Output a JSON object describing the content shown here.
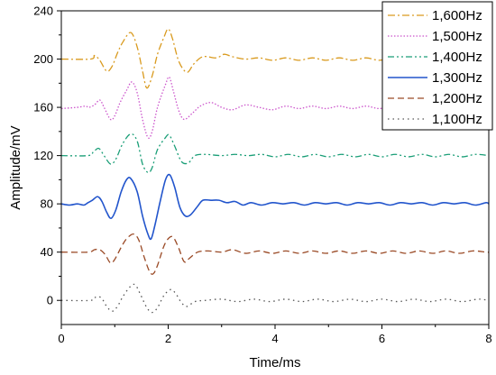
{
  "chart_data": {
    "type": "line",
    "title": "",
    "xlabel": "Time/ms",
    "ylabel": "Amplitude/mV",
    "xlim": [
      0,
      8
    ],
    "ylim": [
      -20,
      240
    ],
    "xticks": [
      0,
      2,
      4,
      6,
      8
    ],
    "xtick_labels": [
      "0",
      "2",
      "4",
      "6",
      "8"
    ],
    "yticks": [
      0,
      40,
      80,
      120,
      160,
      200,
      240
    ],
    "ytick_labels": [
      "0",
      "40",
      "80",
      "120",
      "160",
      "200",
      "240"
    ],
    "grid": false,
    "legend_position": "top-right",
    "series": [
      {
        "name": "1,600Hz",
        "color": "#d99a1e",
        "dash": "dashdot",
        "width": 1.3,
        "points": [
          [
            0,
            200
          ],
          [
            0.55,
            200
          ],
          [
            0.62,
            203
          ],
          [
            0.72,
            199
          ],
          [
            0.85,
            190
          ],
          [
            0.95,
            194
          ],
          [
            1.05,
            205
          ],
          [
            1.15,
            214
          ],
          [
            1.3,
            222
          ],
          [
            1.42,
            210
          ],
          [
            1.52,
            190
          ],
          [
            1.6,
            176
          ],
          [
            1.7,
            186
          ],
          [
            1.8,
            204
          ],
          [
            1.92,
            218
          ],
          [
            2.0,
            225
          ],
          [
            2.08,
            217
          ],
          [
            2.2,
            198
          ],
          [
            2.35,
            189
          ],
          [
            2.48,
            196
          ],
          [
            2.65,
            202
          ],
          [
            2.9,
            201
          ],
          [
            3.05,
            204
          ],
          [
            3.2,
            202
          ],
          [
            3.45,
            200
          ],
          [
            3.7,
            201
          ],
          [
            3.95,
            199
          ],
          [
            4.2,
            201
          ],
          [
            4.45,
            199
          ],
          [
            4.7,
            201
          ],
          [
            4.95,
            199
          ],
          [
            5.2,
            201
          ],
          [
            5.45,
            199
          ],
          [
            5.7,
            201
          ],
          [
            5.95,
            199
          ],
          [
            6.2,
            201
          ],
          [
            6.45,
            199
          ],
          [
            6.7,
            201
          ],
          [
            6.95,
            199
          ],
          [
            7.2,
            201
          ],
          [
            7.45,
            199
          ],
          [
            7.7,
            201
          ],
          [
            7.95,
            200
          ],
          [
            8,
            200
          ]
        ]
      },
      {
        "name": "1,500Hz",
        "color": "#cc55cc",
        "dash": "dot",
        "width": 1.3,
        "points": [
          [
            0,
            159
          ],
          [
            0.3,
            160
          ],
          [
            0.45,
            161
          ],
          [
            0.52,
            160
          ],
          [
            0.62,
            162
          ],
          [
            0.72,
            166
          ],
          [
            0.8,
            160
          ],
          [
            0.92,
            150
          ],
          [
            1.0,
            153
          ],
          [
            1.1,
            164
          ],
          [
            1.22,
            174
          ],
          [
            1.32,
            181
          ],
          [
            1.42,
            172
          ],
          [
            1.52,
            150
          ],
          [
            1.62,
            135
          ],
          [
            1.7,
            140
          ],
          [
            1.8,
            160
          ],
          [
            1.95,
            179
          ],
          [
            2.02,
            185
          ],
          [
            2.1,
            173
          ],
          [
            2.2,
            157
          ],
          [
            2.3,
            150
          ],
          [
            2.45,
            155
          ],
          [
            2.6,
            161
          ],
          [
            2.8,
            164
          ],
          [
            3.0,
            160
          ],
          [
            3.2,
            158
          ],
          [
            3.45,
            162
          ],
          [
            3.7,
            160
          ],
          [
            3.95,
            158
          ],
          [
            4.2,
            161
          ],
          [
            4.45,
            159
          ],
          [
            4.7,
            161
          ],
          [
            4.95,
            159
          ],
          [
            5.2,
            161
          ],
          [
            5.45,
            159
          ],
          [
            5.7,
            161
          ],
          [
            5.95,
            159
          ],
          [
            6.2,
            161
          ],
          [
            6.45,
            159
          ],
          [
            6.7,
            161
          ],
          [
            6.95,
            159
          ],
          [
            7.2,
            161
          ],
          [
            7.45,
            159
          ],
          [
            7.7,
            161
          ],
          [
            7.95,
            160
          ],
          [
            8,
            160
          ]
        ]
      },
      {
        "name": "1,400Hz",
        "color": "#1a9e77",
        "dash": "dashdotdot",
        "width": 1.3,
        "points": [
          [
            0,
            120
          ],
          [
            0.5,
            120
          ],
          [
            0.6,
            123
          ],
          [
            0.7,
            126
          ],
          [
            0.8,
            120
          ],
          [
            0.92,
            113
          ],
          [
            1.02,
            117
          ],
          [
            1.15,
            130
          ],
          [
            1.3,
            138
          ],
          [
            1.42,
            132
          ],
          [
            1.52,
            113
          ],
          [
            1.62,
            106
          ],
          [
            1.7,
            110
          ],
          [
            1.8,
            125
          ],
          [
            1.95,
            135
          ],
          [
            2.02,
            137
          ],
          [
            2.12,
            128
          ],
          [
            2.25,
            115
          ],
          [
            2.38,
            114
          ],
          [
            2.5,
            120
          ],
          [
            2.7,
            121
          ],
          [
            3.0,
            120
          ],
          [
            3.25,
            121
          ],
          [
            3.5,
            120
          ],
          [
            3.75,
            121
          ],
          [
            4.0,
            119
          ],
          [
            4.25,
            121
          ],
          [
            4.5,
            119
          ],
          [
            4.75,
            121
          ],
          [
            5.0,
            119
          ],
          [
            5.25,
            121
          ],
          [
            5.5,
            119
          ],
          [
            5.75,
            121
          ],
          [
            6.0,
            119
          ],
          [
            6.25,
            121
          ],
          [
            6.5,
            119
          ],
          [
            6.75,
            121
          ],
          [
            7.0,
            119
          ],
          [
            7.25,
            121
          ],
          [
            7.5,
            119
          ],
          [
            7.75,
            121
          ],
          [
            8,
            120
          ]
        ]
      },
      {
        "name": "1,300Hz",
        "color": "#2255cc",
        "dash": "solid",
        "width": 1.6,
        "points": [
          [
            0,
            80
          ],
          [
            0.15,
            79
          ],
          [
            0.3,
            80
          ],
          [
            0.42,
            79
          ],
          [
            0.5,
            81
          ],
          [
            0.58,
            83
          ],
          [
            0.68,
            86
          ],
          [
            0.76,
            82
          ],
          [
            0.85,
            73
          ],
          [
            0.93,
            68
          ],
          [
            1.02,
            75
          ],
          [
            1.12,
            90
          ],
          [
            1.22,
            100
          ],
          [
            1.3,
            101
          ],
          [
            1.42,
            90
          ],
          [
            1.52,
            70
          ],
          [
            1.62,
            55
          ],
          [
            1.68,
            51
          ],
          [
            1.75,
            62
          ],
          [
            1.85,
            82
          ],
          [
            1.95,
            100
          ],
          [
            2.03,
            104
          ],
          [
            2.12,
            94
          ],
          [
            2.22,
            77
          ],
          [
            2.32,
            70
          ],
          [
            2.42,
            71
          ],
          [
            2.55,
            78
          ],
          [
            2.65,
            83
          ],
          [
            2.8,
            83
          ],
          [
            2.95,
            83
          ],
          [
            3.1,
            81
          ],
          [
            3.25,
            82
          ],
          [
            3.4,
            79
          ],
          [
            3.55,
            81
          ],
          [
            3.75,
            79
          ],
          [
            3.95,
            81
          ],
          [
            4.15,
            80
          ],
          [
            4.35,
            81
          ],
          [
            4.55,
            79
          ],
          [
            4.75,
            81
          ],
          [
            4.95,
            80
          ],
          [
            5.15,
            81
          ],
          [
            5.35,
            79
          ],
          [
            5.55,
            81
          ],
          [
            5.75,
            80
          ],
          [
            5.95,
            81
          ],
          [
            6.15,
            79
          ],
          [
            6.35,
            81
          ],
          [
            6.55,
            80
          ],
          [
            6.75,
            81
          ],
          [
            6.95,
            79
          ],
          [
            7.15,
            81
          ],
          [
            7.35,
            80
          ],
          [
            7.55,
            81
          ],
          [
            7.75,
            79
          ],
          [
            7.95,
            81
          ],
          [
            8,
            80
          ]
        ]
      },
      {
        "name": "1,200Hz",
        "color": "#9a4a26",
        "dash": "dash",
        "width": 1.3,
        "points": [
          [
            0,
            40
          ],
          [
            0.5,
            40
          ],
          [
            0.62,
            42
          ],
          [
            0.72,
            42
          ],
          [
            0.82,
            38
          ],
          [
            0.92,
            31
          ],
          [
            1.0,
            34
          ],
          [
            1.12,
            44
          ],
          [
            1.22,
            51
          ],
          [
            1.35,
            55
          ],
          [
            1.45,
            50
          ],
          [
            1.55,
            36
          ],
          [
            1.65,
            24
          ],
          [
            1.72,
            22
          ],
          [
            1.8,
            29
          ],
          [
            1.92,
            45
          ],
          [
            2.02,
            52
          ],
          [
            2.1,
            52
          ],
          [
            2.2,
            43
          ],
          [
            2.3,
            32
          ],
          [
            2.4,
            35
          ],
          [
            2.55,
            40
          ],
          [
            2.75,
            41
          ],
          [
            3.0,
            40
          ],
          [
            3.2,
            42
          ],
          [
            3.45,
            39
          ],
          [
            3.7,
            41
          ],
          [
            3.95,
            39
          ],
          [
            4.2,
            41
          ],
          [
            4.45,
            39
          ],
          [
            4.7,
            41
          ],
          [
            4.95,
            39
          ],
          [
            5.2,
            41
          ],
          [
            5.45,
            39
          ],
          [
            5.7,
            41
          ],
          [
            5.95,
            39
          ],
          [
            6.2,
            41
          ],
          [
            6.45,
            39
          ],
          [
            6.7,
            41
          ],
          [
            6.95,
            39
          ],
          [
            7.2,
            41
          ],
          [
            7.45,
            39
          ],
          [
            7.7,
            41
          ],
          [
            7.95,
            40
          ],
          [
            8,
            40
          ]
        ]
      },
      {
        "name": "1,100Hz",
        "color": "#555555",
        "dash": "dotsparse",
        "width": 1.3,
        "points": [
          [
            0,
            0
          ],
          [
            0.55,
            0
          ],
          [
            0.65,
            3
          ],
          [
            0.75,
            2
          ],
          [
            0.85,
            -5
          ],
          [
            0.95,
            -9
          ],
          [
            1.05,
            -5
          ],
          [
            1.15,
            3
          ],
          [
            1.28,
            11
          ],
          [
            1.38,
            13
          ],
          [
            1.48,
            5
          ],
          [
            1.6,
            -6
          ],
          [
            1.7,
            -10
          ],
          [
            1.8,
            -6
          ],
          [
            1.92,
            4
          ],
          [
            2.05,
            9
          ],
          [
            2.15,
            5
          ],
          [
            2.25,
            -2
          ],
          [
            2.35,
            -5
          ],
          [
            2.5,
            -1
          ],
          [
            2.7,
            0
          ],
          [
            3.0,
            1
          ],
          [
            3.3,
            -1
          ],
          [
            3.6,
            1
          ],
          [
            3.9,
            -1
          ],
          [
            4.2,
            1
          ],
          [
            4.5,
            -1
          ],
          [
            4.8,
            1
          ],
          [
            5.1,
            -1
          ],
          [
            5.4,
            1
          ],
          [
            5.7,
            -1
          ],
          [
            6.0,
            1
          ],
          [
            6.3,
            -1
          ],
          [
            6.6,
            1
          ],
          [
            6.9,
            -1
          ],
          [
            7.2,
            1
          ],
          [
            7.5,
            -1
          ],
          [
            7.8,
            1
          ],
          [
            8,
            0
          ]
        ]
      }
    ]
  }
}
